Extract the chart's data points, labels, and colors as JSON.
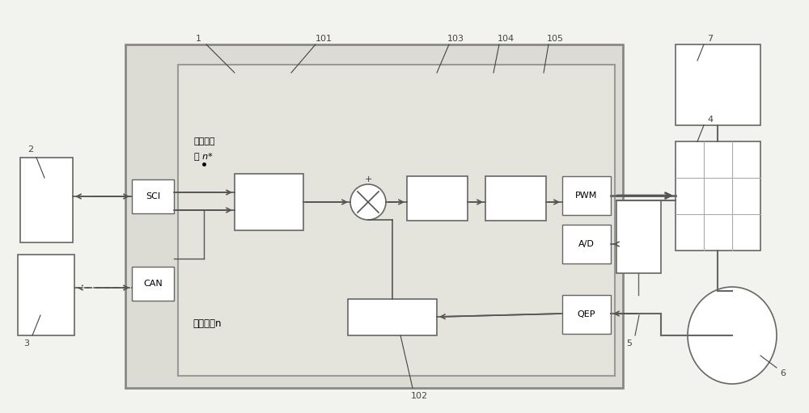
{
  "figsize": [
    10.0,
    5.11
  ],
  "dpi": 100,
  "bg": "#f2f2ee",
  "outer_fc": "#dcdcd4",
  "inner_fc": "#e4e4dc",
  "white": "#ffffff",
  "ec_dark": "#666666",
  "ec_med": "#888888",
  "arrow_col": "#555555",
  "labels": {
    "SCI": "SCI",
    "CAN": "CAN",
    "PWM": "PWM",
    "AD": "A/D",
    "QEP": "QEP",
    "motor_n": "电机转速n",
    "ref1": "参考转速",
    "ref2": "速 n*",
    "n1": "1",
    "n2": "2",
    "n3": "3",
    "n4": "4",
    "n5": "5",
    "n6": "6",
    "n7": "7",
    "n101": "101",
    "n102": "102",
    "n103": "103",
    "n104": "104",
    "n105": "105"
  }
}
